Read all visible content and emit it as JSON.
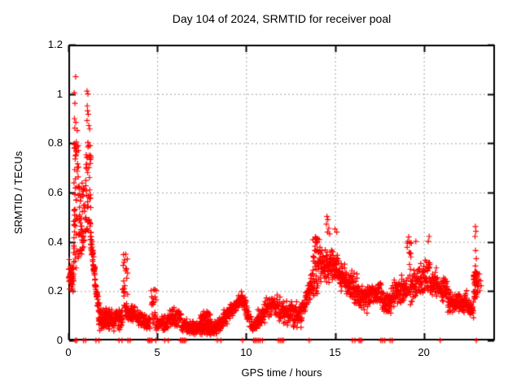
{
  "title": "Day 104 of 2024, SRMTID for receiver poal",
  "x_axis": {
    "label": "GPS time / hours",
    "tick_labels": [
      "0",
      "5",
      "10",
      "15",
      "20"
    ],
    "tick_values": [
      0,
      5,
      10,
      15,
      20
    ],
    "min": 0,
    "max": 24
  },
  "y_axis": {
    "label": "SRMTID / TECUs",
    "tick_labels": [
      "0",
      "0.2",
      "0.4",
      "0.6",
      "0.8",
      "1",
      "1.2"
    ],
    "tick_values": [
      0,
      0.2,
      0.4,
      0.6,
      0.8,
      1.0,
      1.2
    ],
    "min": 0,
    "max": 1.2
  },
  "colors": {
    "marker": "#ff0000",
    "grid": "#a6a6a6",
    "border": "#000000",
    "background": "#ffffff",
    "text": "#000000"
  },
  "chart_data": {
    "type": "scatter",
    "marker": "plus",
    "marker_size": 7,
    "title": "Day 104 of 2024, SRMTID for receiver poal",
    "xlabel": "GPS time / hours",
    "ylabel": "SRMTID / TECUs",
    "xlim": [
      0,
      24
    ],
    "ylim": [
      0,
      1.2
    ],
    "grid": true,
    "legend": "none",
    "description": "Dense time series of SRMTID TEC perturbation values: morning spike to ~1.07 TECU near 0.4-1.2 h, quiet band ~0.05-0.15 over 2-9 h, afternoon enhancement peaking ~0.5 at 14.5 h, evening activity ~0.15-0.35 with final column to ~0.46 near 23 h, sporadic zero-value samples on the baseline.",
    "segments": [
      {
        "x0": 0.02,
        "x1": 0.3,
        "n": 45,
        "y0": 0.26,
        "y1": 0.26,
        "s": 0.06,
        "d": "n"
      },
      {
        "x0": 0.3,
        "x1": 0.6,
        "n": 55,
        "y0": 0.28,
        "y1": 0.82,
        "s": 0,
        "d": "u"
      },
      {
        "x0": 0.6,
        "x1": 0.95,
        "n": 45,
        "y0": 0.35,
        "y1": 0.64,
        "s": 0,
        "d": "u"
      },
      {
        "x0": 0.95,
        "x1": 1.28,
        "n": 50,
        "y0": 0.42,
        "y1": 0.8,
        "s": 0,
        "d": "u"
      },
      {
        "x0": 1.25,
        "x1": 1.5,
        "n": 40,
        "y0": 0.4,
        "y1": 0.27,
        "s": 0.045,
        "d": "n"
      },
      {
        "x0": 1.48,
        "x1": 1.75,
        "n": 35,
        "y0": 0.25,
        "y1": 0.12,
        "s": 0.035,
        "d": "n"
      },
      {
        "x0": 1.7,
        "x1": 2.5,
        "n": 100,
        "y0": 0.085,
        "y1": 0.085,
        "s": 0.042,
        "d": "n"
      },
      {
        "x0": 2.5,
        "x1": 3.05,
        "n": 65,
        "y0": 0.08,
        "y1": 0.085,
        "s": 0.038,
        "d": "n"
      },
      {
        "x0": 3.05,
        "x1": 3.35,
        "n": 25,
        "y0": 0.13,
        "y1": 0.35,
        "s": 0,
        "d": "u"
      },
      {
        "x0": 3.2,
        "x1": 4.6,
        "n": 130,
        "y0": 0.12,
        "y1": 0.07,
        "s": 0.033,
        "d": "n"
      },
      {
        "x0": 4.6,
        "x1": 4.95,
        "n": 25,
        "y0": 0.05,
        "y1": 0.21,
        "s": 0,
        "d": "u"
      },
      {
        "x0": 4.95,
        "x1": 5.6,
        "n": 60,
        "y0": 0.075,
        "y1": 0.07,
        "s": 0.028,
        "d": "n"
      },
      {
        "x0": 5.6,
        "x1": 6.35,
        "n": 70,
        "y0": 0.085,
        "y1": 0.095,
        "s": 0.038,
        "d": "n"
      },
      {
        "x0": 6.35,
        "x1": 8.35,
        "n": 190,
        "y0": 0.055,
        "y1": 0.05,
        "s": 0.027,
        "d": "n"
      },
      {
        "x0": 7.4,
        "x1": 8.0,
        "n": 35,
        "y0": 0.09,
        "y1": 0.09,
        "s": 0.03,
        "d": "n"
      },
      {
        "x0": 8.35,
        "x1": 9.3,
        "n": 90,
        "y0": 0.06,
        "y1": 0.13,
        "s": 0.033,
        "d": "n"
      },
      {
        "x0": 9.3,
        "x1": 9.8,
        "n": 50,
        "y0": 0.13,
        "y1": 0.175,
        "s": 0.03,
        "d": "n"
      },
      {
        "x0": 9.8,
        "x1": 10.2,
        "n": 40,
        "y0": 0.165,
        "y1": 0.09,
        "s": 0.033,
        "d": "n"
      },
      {
        "x0": 10.2,
        "x1": 10.6,
        "n": 30,
        "y0": 0.07,
        "y1": 0.05,
        "s": 0.028,
        "d": "n"
      },
      {
        "x0": 10.6,
        "x1": 11.5,
        "n": 85,
        "y0": 0.08,
        "y1": 0.16,
        "s": 0.045,
        "d": "n"
      },
      {
        "x0": 11.5,
        "x1": 12.2,
        "n": 65,
        "y0": 0.15,
        "y1": 0.12,
        "s": 0.05,
        "d": "n"
      },
      {
        "x0": 12.2,
        "x1": 13.1,
        "n": 85,
        "y0": 0.115,
        "y1": 0.1,
        "s": 0.048,
        "d": "n"
      },
      {
        "x0": 13.1,
        "x1": 13.75,
        "n": 65,
        "y0": 0.13,
        "y1": 0.23,
        "s": 0.055,
        "d": "n"
      },
      {
        "x0": 13.75,
        "x1": 14.15,
        "n": 50,
        "y0": 0.18,
        "y1": 0.42,
        "s": 0,
        "d": "u"
      },
      {
        "x0": 14.15,
        "x1": 14.85,
        "n": 75,
        "y0": 0.3,
        "y1": 0.31,
        "s": 0.068,
        "d": "n"
      },
      {
        "x0": 14.85,
        "x1": 15.35,
        "n": 55,
        "y0": 0.3,
        "y1": 0.28,
        "s": 0.063,
        "d": "n"
      },
      {
        "x0": 15.35,
        "x1": 16.25,
        "n": 90,
        "y0": 0.26,
        "y1": 0.2,
        "s": 0.058,
        "d": "n"
      },
      {
        "x0": 16.25,
        "x1": 16.85,
        "n": 60,
        "y0": 0.17,
        "y1": 0.17,
        "s": 0.053,
        "d": "n"
      },
      {
        "x0": 16.85,
        "x1": 17.65,
        "n": 75,
        "y0": 0.19,
        "y1": 0.19,
        "s": 0.053,
        "d": "n"
      },
      {
        "x0": 17.65,
        "x1": 18.15,
        "n": 45,
        "y0": 0.15,
        "y1": 0.15,
        "s": 0.048,
        "d": "n"
      },
      {
        "x0": 18.15,
        "x1": 19.05,
        "n": 85,
        "y0": 0.18,
        "y1": 0.22,
        "s": 0.053,
        "d": "n"
      },
      {
        "x0": 19.05,
        "x1": 19.3,
        "n": 25,
        "y0": 0.14,
        "y1": 0.4,
        "s": 0,
        "d": "u"
      },
      {
        "x0": 19.3,
        "x1": 20.35,
        "n": 100,
        "y0": 0.23,
        "y1": 0.27,
        "s": 0.063,
        "d": "n"
      },
      {
        "x0": 20.35,
        "x1": 21.35,
        "n": 95,
        "y0": 0.25,
        "y1": 0.2,
        "s": 0.058,
        "d": "n"
      },
      {
        "x0": 21.35,
        "x1": 22.45,
        "n": 105,
        "y0": 0.16,
        "y1": 0.155,
        "s": 0.042,
        "d": "n"
      },
      {
        "x0": 22.45,
        "x1": 22.8,
        "n": 35,
        "y0": 0.13,
        "y1": 0.125,
        "s": 0.033,
        "d": "n"
      },
      {
        "x0": 22.8,
        "x1": 23.1,
        "n": 40,
        "y0": 0.17,
        "y1": 0.28,
        "s": 0,
        "d": "u"
      }
    ],
    "outlier_points": [
      [
        0.41,
        1.07
      ],
      [
        0.33,
        1.005
      ],
      [
        0.37,
        0.962
      ],
      [
        0.34,
        0.9
      ],
      [
        0.42,
        0.885
      ],
      [
        0.36,
        0.862
      ],
      [
        0.5,
        0.852
      ],
      [
        0.45,
        0.805
      ],
      [
        0.55,
        0.79
      ],
      [
        0.38,
        0.782
      ],
      [
        1.05,
        1.012
      ],
      [
        1.1,
        1.0
      ],
      [
        1.06,
        0.952
      ],
      [
        1.08,
        0.932
      ],
      [
        1.12,
        0.918
      ],
      [
        1.05,
        0.892
      ],
      [
        1.15,
        0.872
      ],
      [
        1.2,
        0.858
      ],
      [
        1.1,
        0.803
      ],
      [
        1.22,
        0.79
      ],
      [
        1.18,
        0.752
      ],
      [
        13.9,
        0.42
      ],
      [
        13.92,
        0.4
      ],
      [
        13.88,
        0.382
      ],
      [
        13.95,
        0.362
      ],
      [
        14.55,
        0.503
      ],
      [
        14.6,
        0.49
      ],
      [
        14.52,
        0.472
      ],
      [
        14.65,
        0.455
      ],
      [
        14.58,
        0.44
      ],
      [
        14.7,
        0.432
      ],
      [
        15.0,
        0.452
      ],
      [
        15.1,
        0.44
      ],
      [
        19.15,
        0.42
      ],
      [
        19.1,
        0.402
      ],
      [
        19.55,
        0.402
      ],
      [
        20.3,
        0.422
      ],
      [
        20.25,
        0.402
      ],
      [
        22.9,
        0.462
      ],
      [
        22.93,
        0.443
      ],
      [
        22.88,
        0.422
      ],
      [
        22.91,
        0.365
      ],
      [
        22.95,
        0.332
      ],
      [
        22.9,
        0.302
      ],
      [
        23.12,
        0.27
      ],
      [
        23.18,
        0.242
      ],
      [
        23.22,
        0.222
      ],
      [
        23.15,
        0.202
      ]
    ],
    "zero_points": [
      0.4,
      0.47,
      0.85,
      0.97,
      1.55,
      1.72,
      2.85,
      3.02,
      3.35,
      3.47,
      4.48,
      4.55,
      4.62,
      4.7,
      4.92,
      5.42,
      5.62,
      6.3,
      6.38,
      6.45,
      6.52,
      6.6,
      8.38,
      8.58,
      9.8,
      10.42,
      10.5,
      10.58,
      10.68,
      10.78,
      10.92,
      11.82,
      11.92,
      12.02,
      12.1,
      13.55,
      15.98,
      16.12,
      16.35,
      16.42,
      16.5,
      17.58,
      17.68,
      17.8,
      18.1,
      18.22,
      20.92,
      22.95
    ]
  }
}
